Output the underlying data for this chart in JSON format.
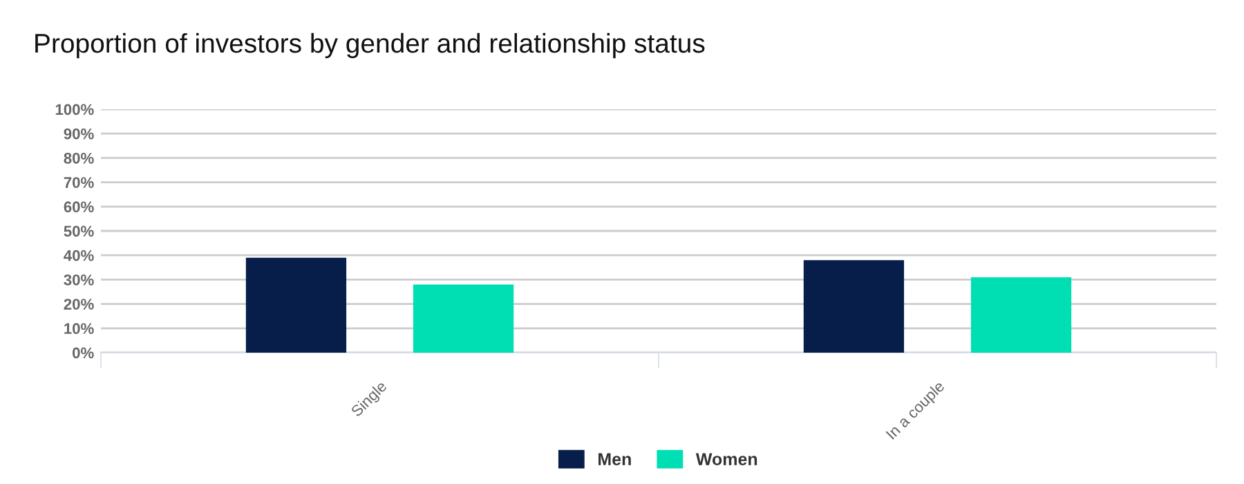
{
  "chart_data": {
    "type": "bar",
    "title": "Proportion of investors by gender and relationship status",
    "categories": [
      "Single",
      "In a couple"
    ],
    "series": [
      {
        "name": "Men",
        "color": "#081e4a",
        "values": [
          39,
          38
        ]
      },
      {
        "name": "Women",
        "color": "#00dfb4",
        "values": [
          28,
          31
        ]
      }
    ],
    "ylim": [
      0,
      100
    ],
    "yticks": [
      {
        "value": 0,
        "label": "0%"
      },
      {
        "value": 10,
        "label": "10%"
      },
      {
        "value": 20,
        "label": "20%"
      },
      {
        "value": 30,
        "label": "30%"
      },
      {
        "value": 40,
        "label": "40%"
      },
      {
        "value": 50,
        "label": "50%"
      },
      {
        "value": 60,
        "label": "60%"
      },
      {
        "value": 70,
        "label": "70%"
      },
      {
        "value": 80,
        "label": "80%"
      },
      {
        "value": 90,
        "label": "90%"
      },
      {
        "value": 100,
        "label": "100%"
      }
    ],
    "grid": "y",
    "legend": "bottom"
  }
}
